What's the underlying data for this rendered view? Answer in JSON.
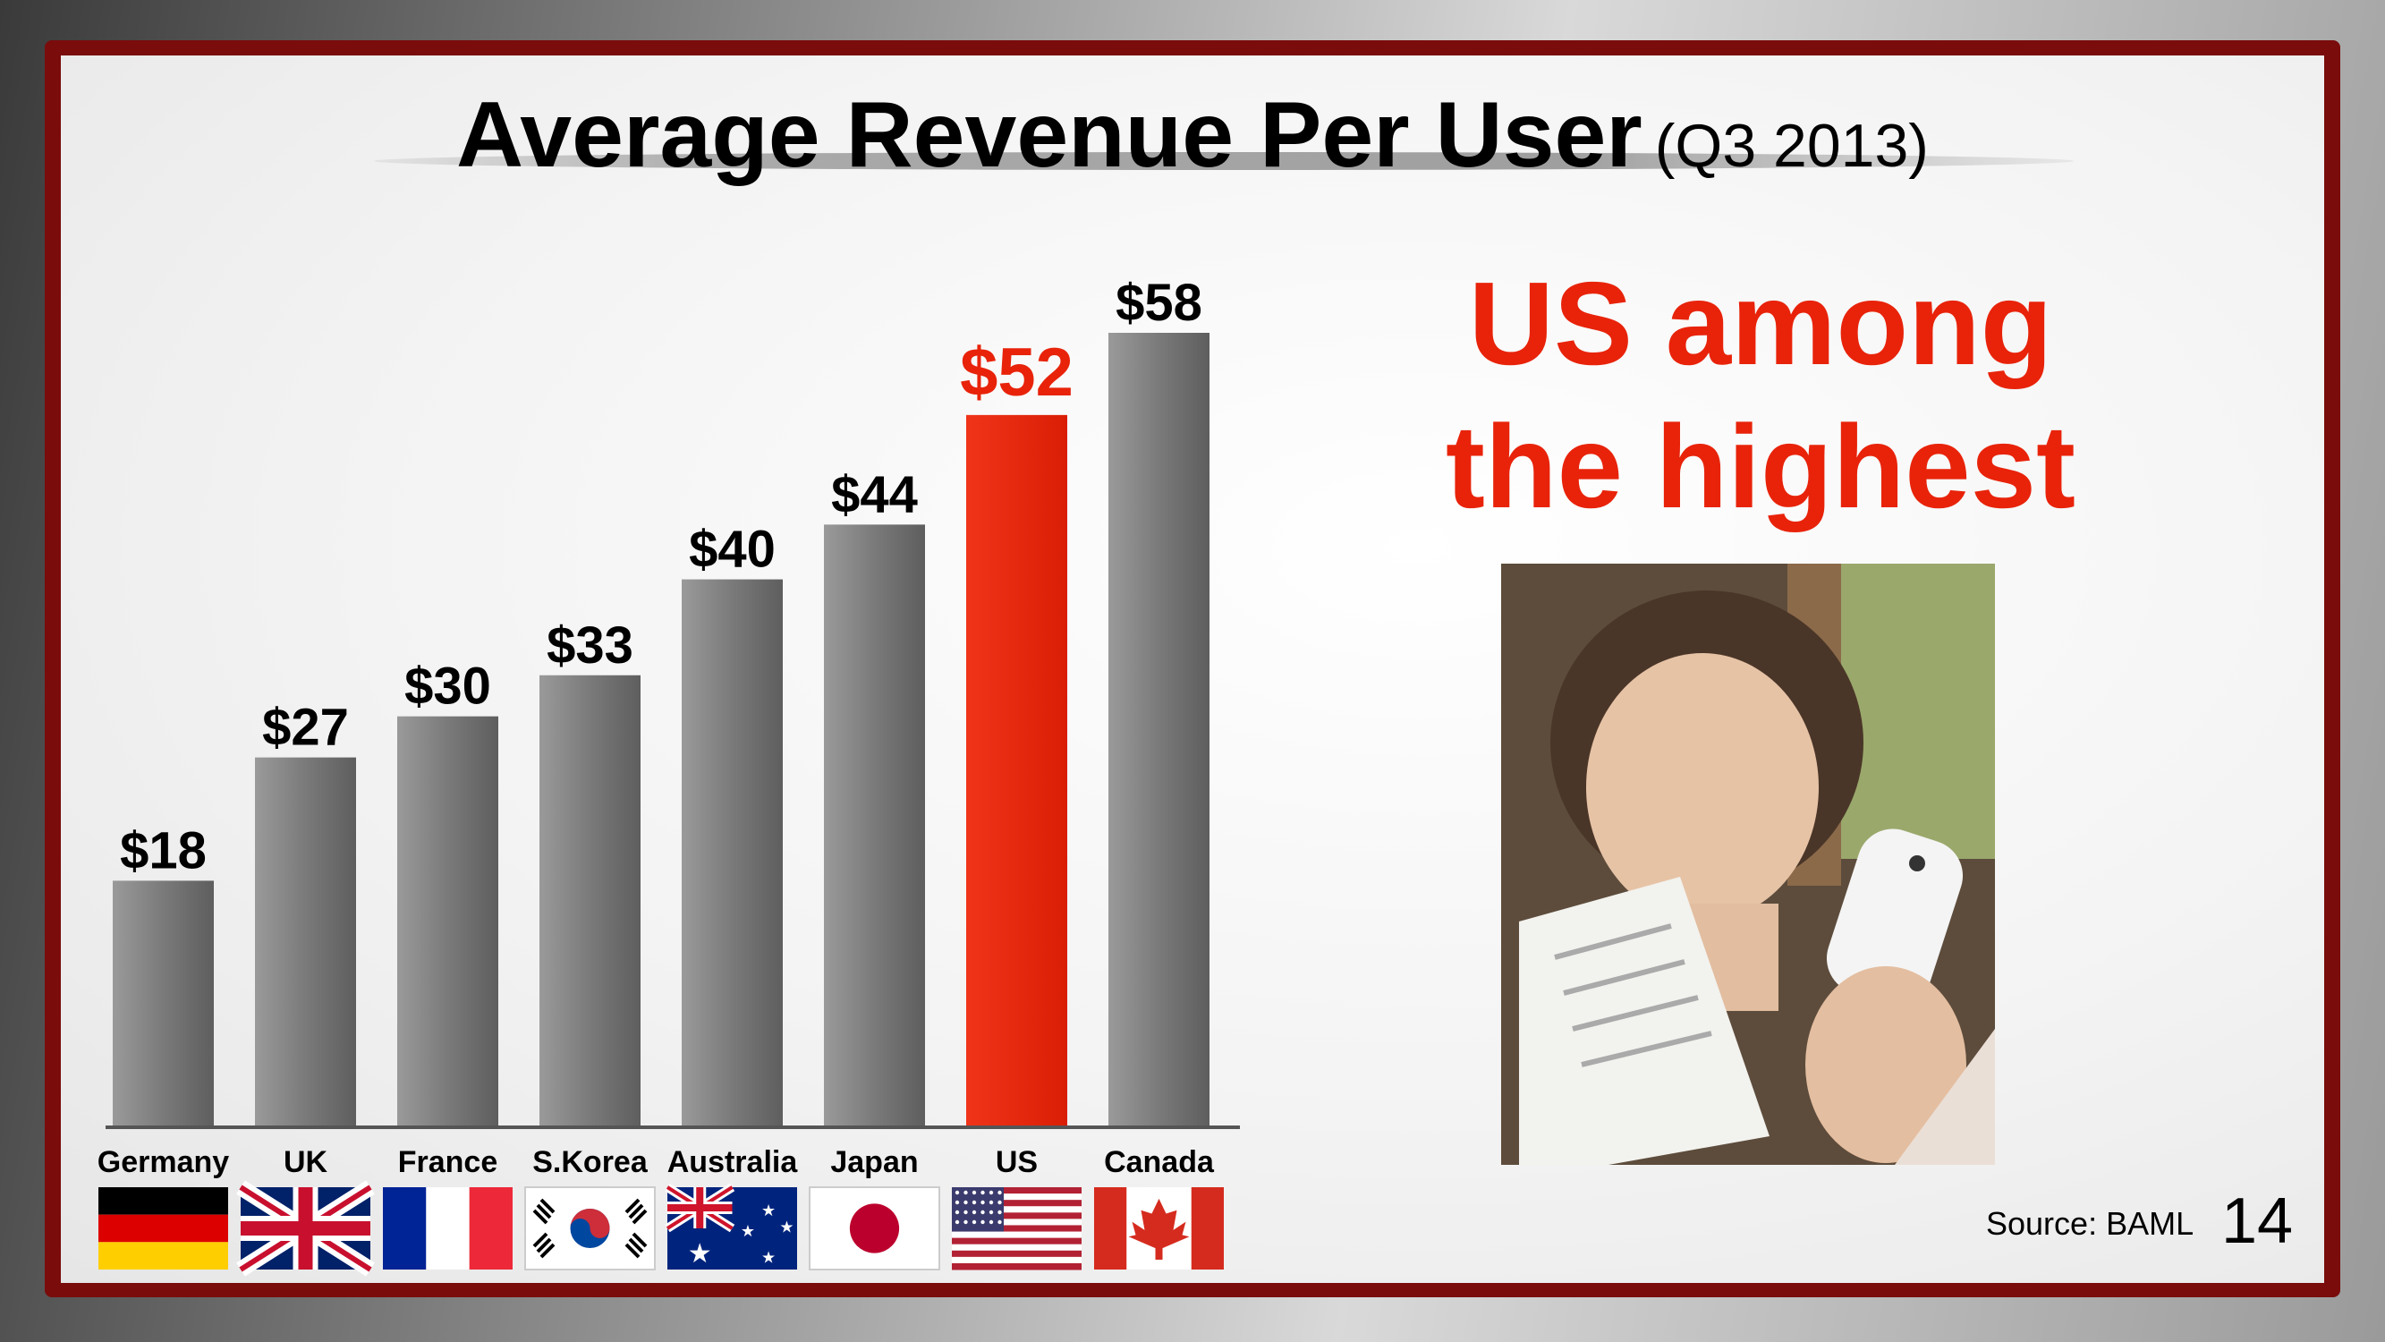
{
  "slide": {
    "title_main": "Average Revenue Per User",
    "title_sub": "(Q3 2013)",
    "callout_line1": "US among",
    "callout_line2": "the highest",
    "source": "Source: BAML",
    "page_number": "14"
  },
  "colors": {
    "bar_default": "#7d7d7d",
    "bar_highlight": "#e8230a",
    "label_default": "#000000",
    "label_highlight": "#e8230a",
    "frame": "#7a0c0c"
  },
  "chart_data": {
    "type": "bar",
    "title": "Average Revenue Per User (Q3 2013)",
    "categories": [
      "Germany",
      "UK",
      "France",
      "S.Korea",
      "Australia",
      "Japan",
      "US",
      "Canada"
    ],
    "values": [
      18,
      27,
      30,
      33,
      40,
      44,
      52,
      58
    ],
    "value_labels": [
      "$18",
      "$27",
      "$30",
      "$33",
      "$40",
      "$44",
      "$52",
      "$58"
    ],
    "highlight": "US",
    "unit": "$",
    "ylim": [
      0,
      58
    ],
    "grid": false,
    "legend": "none",
    "flags": [
      "germany-flag",
      "uk-flag",
      "france-flag",
      "south-korea-flag",
      "australia-flag",
      "japan-flag",
      "us-flag",
      "canada-flag"
    ]
  }
}
